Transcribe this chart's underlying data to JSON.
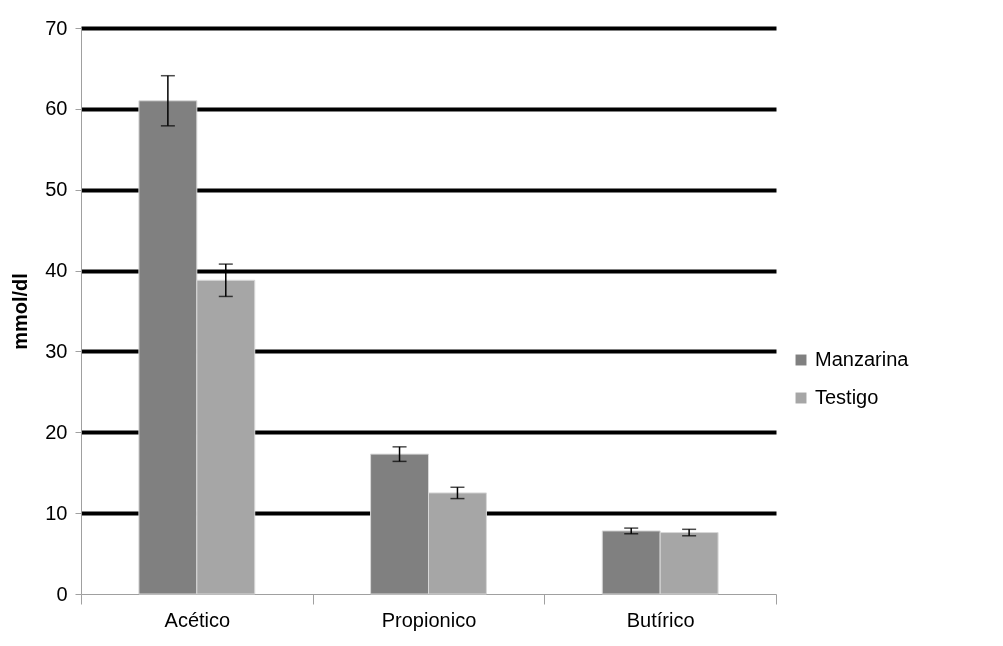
{
  "chart_data": {
    "type": "bar",
    "ylabel": "mmol/dl",
    "categories": [
      "Acético",
      "Propionico",
      "Butírico"
    ],
    "series": [
      {
        "name": "Manzarina",
        "color": "#808080",
        "values": [
          61.0,
          17.3,
          7.8
        ],
        "errors": [
          3.1,
          0.9,
          0.35
        ]
      },
      {
        "name": "Testigo",
        "color": "#a6a6a6",
        "values": [
          38.8,
          12.5,
          7.6
        ],
        "errors": [
          2.0,
          0.7,
          0.4
        ]
      }
    ],
    "ylim": [
      0,
      70
    ],
    "yticks": [
      0,
      10,
      20,
      30,
      40,
      50,
      60,
      70
    ],
    "grid": "y",
    "legend": "right"
  }
}
